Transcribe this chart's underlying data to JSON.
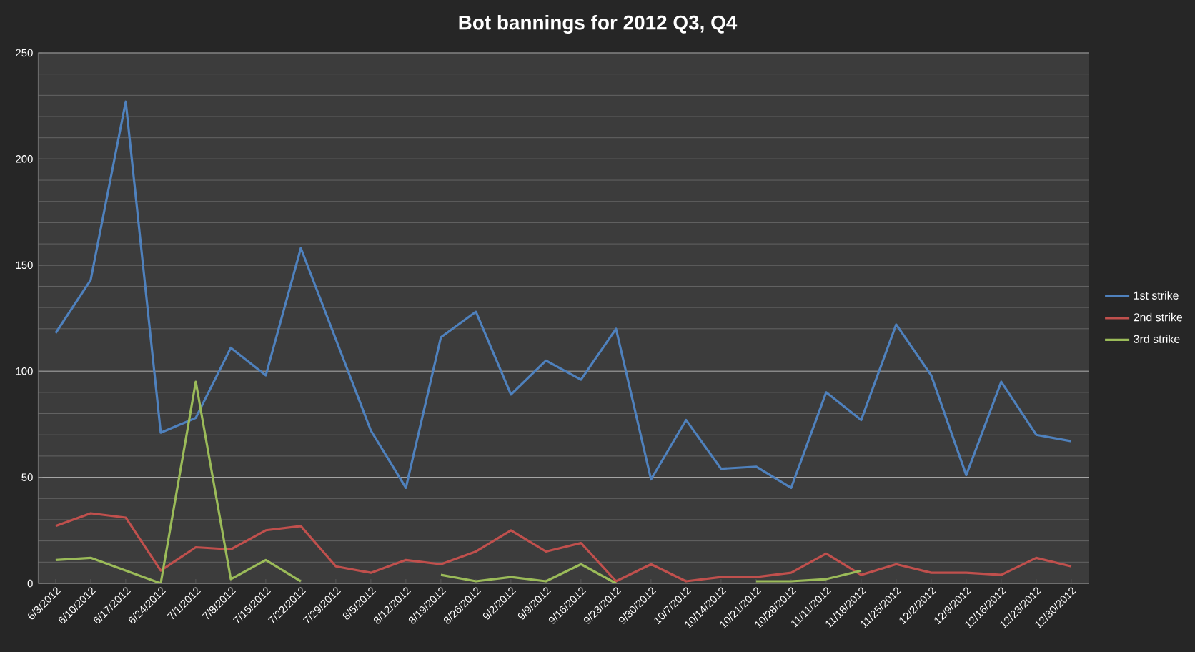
{
  "chart_data": {
    "type": "line",
    "title": "Bot bannings for 2012 Q3, Q4",
    "categories": [
      "6/3/2012",
      "6/10/2012",
      "6/17/2012",
      "6/24/2012",
      "7/1/2012",
      "7/8/2012",
      "7/15/2012",
      "7/22/2012",
      "7/29/2012",
      "8/5/2012",
      "8/12/2012",
      "8/19/2012",
      "8/26/2012",
      "9/2/2012",
      "9/9/2012",
      "9/16/2012",
      "9/23/2012",
      "9/30/2012",
      "10/7/2012",
      "10/14/2012",
      "10/21/2012",
      "10/28/2012",
      "11/11/2012",
      "11/18/2012",
      "11/25/2012",
      "12/2/2012",
      "12/9/2012",
      "12/16/2012",
      "12/23/2012",
      "12/30/2012"
    ],
    "series": [
      {
        "name": "1st strike",
        "color": "#4f81bd",
        "values": [
          118,
          143,
          227,
          71,
          78,
          111,
          98,
          158,
          115,
          72,
          45,
          116,
          128,
          89,
          105,
          96,
          120,
          49,
          77,
          54,
          55,
          45,
          90,
          77,
          122,
          98,
          51,
          95,
          70,
          67
        ]
      },
      {
        "name": "2nd strike",
        "color": "#c0504d",
        "values": [
          27,
          33,
          31,
          6,
          17,
          16,
          25,
          27,
          8,
          5,
          11,
          9,
          15,
          25,
          15,
          19,
          1,
          9,
          1,
          3,
          3,
          5,
          14,
          4,
          9,
          5,
          5,
          4,
          12,
          8
        ]
      },
      {
        "name": "3rd strike",
        "color": "#9bbb59",
        "values": [
          11,
          12,
          6,
          0,
          95,
          2,
          11,
          1,
          null,
          null,
          null,
          4,
          1,
          3,
          1,
          9,
          0,
          null,
          null,
          null,
          1,
          1,
          2,
          6,
          null,
          null,
          null,
          null,
          null,
          null
        ]
      }
    ],
    "ylim": [
      0,
      250
    ],
    "yticks": [
      0,
      50,
      100,
      150,
      200,
      250
    ],
    "grid": "y",
    "legend": "right"
  }
}
